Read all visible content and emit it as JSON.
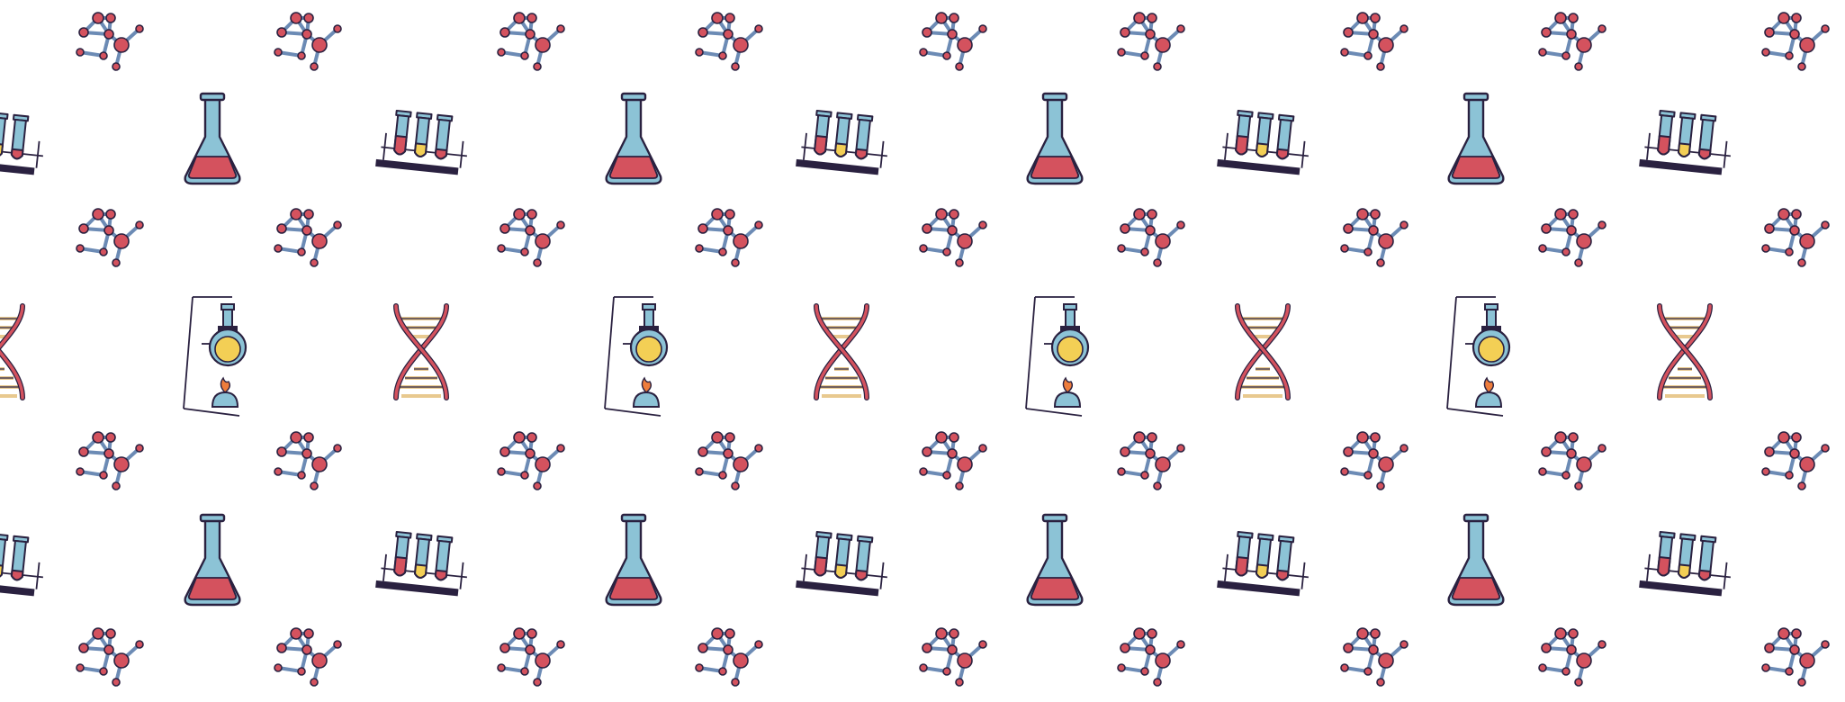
{
  "pattern": {
    "name": "science-icons-seamless-pattern",
    "icons": [
      "molecule-icon",
      "erlenmeyer-flask-icon",
      "test-tube-rack-icon",
      "dna-helix-icon",
      "flask-burner-icon"
    ],
    "colors": {
      "background": "#ffffff",
      "outline": "#2a2140",
      "red": "#d4525e",
      "blue": "#8cc3d6",
      "yellow": "#f3cf55",
      "tan": "#e8c98f",
      "flame": "#ee7d3c"
    }
  }
}
